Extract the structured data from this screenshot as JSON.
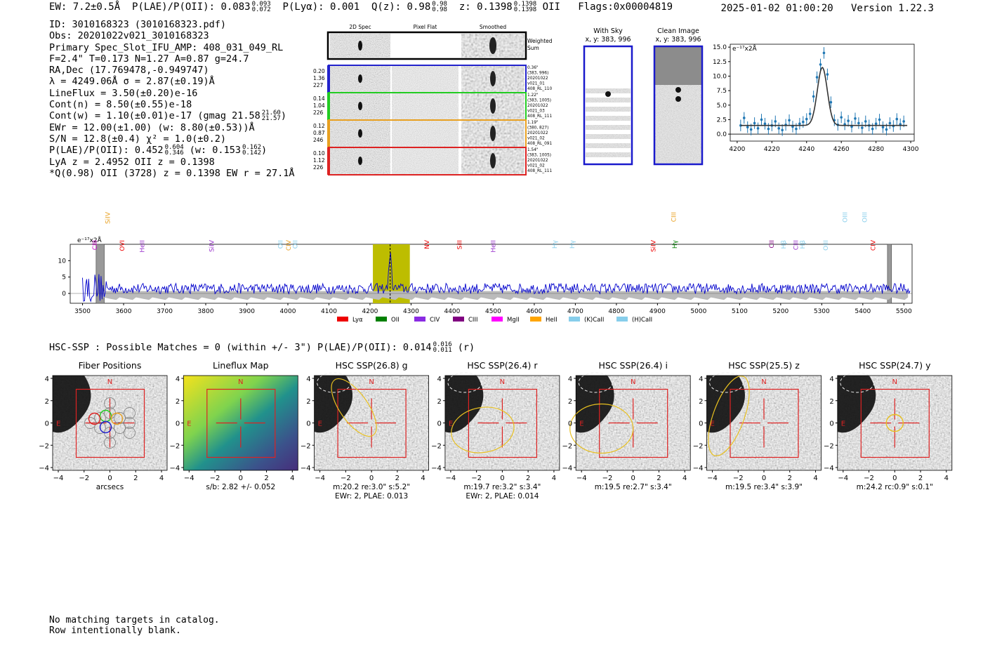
{
  "header": {
    "ew": "EW: 7.2±0.5Å",
    "plae_label": "P(LAE)/P(OII): 0.083",
    "plae_hi": "0.093",
    "plae_lo": "0.072",
    "plya": "P(Lyα): 0.001",
    "q_label": "Q(z): 0.98",
    "q_hi": "0.98",
    "q_lo": "0.98",
    "z_label": "z: 0.1398",
    "z_hi": "0.1398",
    "z_lo": "0.1398",
    "z_line": "OII",
    "flags": "Flags:0x00004819",
    "datetime": "2025-01-02 01:00:20",
    "version": "Version 1.22.3"
  },
  "info": {
    "id": "ID: 3010168323 (3010168323.pdf)",
    "obs": "Obs: 20201022v021_3010168323",
    "primary": "Primary Spec_Slot_IFU_AMP: 408_031_049_RL",
    "params": "F=2.4\"  T=0.173  N=1.27  A=0.87  g=24.7",
    "radec": "RA,Dec (17.769478,-0.949747)",
    "lambda": "λ = 4249.06Å  σ = 2.87(±0.19)Å",
    "lineflux": "LineFlux = 3.50(±0.20)e-16",
    "contn": "Cont(n) = 8.50(±0.55)e-18",
    "contw": "Cont(w) = 1.10(±0.01)e-17 (gmag 21.58",
    "contw_hi": "21.60",
    "contw_lo": "21.57",
    "contw_end": ")",
    "ewr": "EWr = 12.00(±1.00) (w: 8.80(±0.53))Å",
    "sn": "S/N = 12.8(±0.4)  χ² = 1.0(±0.2)",
    "plae2": "P(LAE)/P(OII): 0.452",
    "plae2_hi": "0.604",
    "plae2_lo": "0.346",
    "plae2_w": "(w: 0.153",
    "plae2_w_hi": "0.162",
    "plae2_w_lo": "0.142",
    "plae2_end": ")",
    "lya": "LyA z = 2.4952  OII z = 0.1398",
    "q": "*Q(0.98) OII (3728) z = 0.1398  EW r = 27.1Å"
  },
  "cutouts": {
    "col_labels": [
      "2D Spec",
      "Pixel Flat",
      "Smoothed"
    ],
    "weighted_label": "Weighted Sum",
    "rows": [
      {
        "left": [
          "0.20",
          "1.36",
          "227"
        ],
        "right": [
          "0.36\"",
          "(383, 996)",
          "20201022",
          "v021_01",
          "408_RL_110"
        ],
        "color": "#2222cc"
      },
      {
        "left": [
          "0.14",
          "1.04",
          "226"
        ],
        "right": [
          "1.22\"",
          "(383, 1005)",
          "20201022",
          "v021_03",
          "408_RL_111"
        ],
        "color": "#22cc22"
      },
      {
        "left": [
          "0.12",
          "0.87",
          "246"
        ],
        "right": [
          "1.19\"",
          "(380, 827)",
          "20201022",
          "v021_02",
          "408_RL_091"
        ],
        "color": "#e8a020"
      },
      {
        "left": [
          "0.10",
          "1.12",
          "226"
        ],
        "right": [
          "1.54\"",
          "(383, 1005)",
          "20201022",
          "v021_02",
          "408_RL_111"
        ],
        "color": "#dd2222"
      }
    ]
  },
  "sky_panels": [
    {
      "title": "With Sky",
      "coords": "x, y: 383, 996"
    },
    {
      "title": "Clean Image",
      "coords": "x, y: 383, 996"
    }
  ],
  "chart_data": [
    {
      "type": "scatter",
      "name": "line fit",
      "unit_label": "e⁻¹⁷x2Å",
      "xlim": [
        4196,
        4302
      ],
      "ylim": [
        -1.2,
        15.5
      ],
      "xticks": [
        4200,
        4220,
        4240,
        4260,
        4280,
        4300
      ],
      "yticks": [
        0.0,
        2.5,
        5.0,
        7.5,
        10.0,
        12.5,
        15.0
      ],
      "points": {
        "x": [
          4202,
          4204,
          4206,
          4208,
          4210,
          4212,
          4214,
          4216,
          4218,
          4220,
          4222,
          4224,
          4226,
          4228,
          4230,
          4232,
          4234,
          4236,
          4238,
          4240,
          4242,
          4244,
          4246,
          4248,
          4250,
          4252,
          4254,
          4256,
          4258,
          4260,
          4262,
          4264,
          4266,
          4268,
          4270,
          4272,
          4274,
          4276,
          4278,
          4280,
          4282,
          4284,
          4286,
          4288,
          4290,
          4292,
          4294,
          4296
        ],
        "y": [
          1.5,
          2.8,
          1.2,
          0.8,
          1.9,
          1.0,
          2.5,
          1.8,
          0.9,
          1.5,
          2.2,
          1.0,
          0.7,
          1.6,
          2.4,
          1.3,
          0.9,
          1.8,
          2.1,
          2.6,
          3.5,
          6.5,
          9.8,
          12.0,
          14.0,
          10.3,
          5.5,
          2.4,
          1.6,
          2.9,
          1.7,
          2.3,
          1.3,
          2.7,
          1.9,
          1.1,
          2.2,
          1.5,
          0.9,
          1.8,
          2.5,
          1.2,
          0.8,
          1.9,
          1.4,
          2.6,
          1.7,
          2.2
        ],
        "err": 1.0
      },
      "fit": {
        "center": 4249.06,
        "sigma": 2.87,
        "amplitude": 10.0,
        "continuum": 1.5
      }
    },
    {
      "type": "line",
      "name": "full spectrum",
      "unit_label": "e⁻¹⁷x2Å",
      "xlim": [
        3470,
        5520
      ],
      "ylim": [
        -3,
        15
      ],
      "xticks": [
        3500,
        3600,
        3700,
        3800,
        3900,
        4000,
        4100,
        4200,
        4300,
        4400,
        4500,
        4600,
        4700,
        4800,
        4900,
        5000,
        5100,
        5200,
        5300,
        5400,
        5500
      ],
      "yticks": [
        0,
        5,
        10
      ],
      "highlight_range": [
        4207,
        4297
      ],
      "line_at": 4249.06,
      "masked_ranges": [
        [
          3533,
          3553
        ],
        [
          5460,
          5470
        ]
      ],
      "series_color": "#0000cc",
      "legend": [
        {
          "label": "Lyα",
          "color": "#ee0000"
        },
        {
          "label": "OII",
          "color": "#008000"
        },
        {
          "label": "CIV",
          "color": "#8a2be2"
        },
        {
          "label": "CIII",
          "color": "#800080"
        },
        {
          "label": "MgII",
          "color": "#ff00ff"
        },
        {
          "label": "HeII",
          "color": "#ffa500"
        },
        {
          "label": "(K)CaII",
          "color": "#87ceeb"
        },
        {
          "label": "(H)CaII",
          "color": "#87ceeb"
        }
      ],
      "line_labels": [
        {
          "label": "CIII",
          "x": 3535,
          "color": "#cc00cc"
        },
        {
          "label": "SiIV",
          "x": 3567,
          "color": "#e8a020",
          "row": "high"
        },
        {
          "label": "OVI",
          "x": 3602,
          "color": "#ee0000"
        },
        {
          "label": "HeII",
          "x": 3650,
          "color": "#9933cc"
        },
        {
          "label": "SiIV",
          "x": 3820,
          "color": "#9933cc"
        },
        {
          "label": "OII",
          "x": 3987,
          "color": "#87ceeb"
        },
        {
          "label": "CIV",
          "x": 4007,
          "color": "#e8a020"
        },
        {
          "label": "OII",
          "x": 4023,
          "color": "#87ceeb"
        },
        {
          "label": "NV",
          "x": 4344,
          "color": "#ee0000"
        },
        {
          "label": "SiII",
          "x": 4423,
          "color": "#ee0000"
        },
        {
          "label": "HeII",
          "x": 4505,
          "color": "#9933cc"
        },
        {
          "label": "Hγ",
          "x": 4655,
          "color": "#87ceeb"
        },
        {
          "label": "Hγ",
          "x": 4698,
          "color": "#87ceeb"
        },
        {
          "label": "SiIV",
          "x": 4895,
          "color": "#ee0000"
        },
        {
          "label": "CIII",
          "x": 4945,
          "color": "#e8a020",
          "row": "high"
        },
        {
          "label": "Hγ",
          "x": 4947,
          "color": "#008000"
        },
        {
          "label": "CII",
          "x": 5183,
          "color": "#800080"
        },
        {
          "label": "Hβ",
          "x": 5212,
          "color": "#87ceeb"
        },
        {
          "label": "CIII",
          "x": 5242,
          "color": "#9933cc"
        },
        {
          "label": "Hβ",
          "x": 5258,
          "color": "#87ceeb"
        },
        {
          "label": "OIII",
          "x": 5315,
          "color": "#87ceeb"
        },
        {
          "label": "OIII",
          "x": 5362,
          "color": "#87ceeb",
          "row": "high"
        },
        {
          "label": "OIII",
          "x": 5410,
          "color": "#87ceeb",
          "row": "high"
        },
        {
          "label": "CIV",
          "x": 5430,
          "color": "#ee0000"
        }
      ]
    }
  ],
  "hsc": {
    "title": "HSC-SSP : Possible Matches = 0 (within +/- 3\")  P(LAE)/P(OII): 0.014",
    "title_hi": "0.016",
    "title_lo": "0.011",
    "title_end": "(r)",
    "axis_ticks": [
      "−4",
      "−2",
      "0",
      "2",
      "4"
    ],
    "panels": [
      {
        "title": "Fiber Positions",
        "caption": [
          "arcsecs"
        ],
        "kind": "fiber"
      },
      {
        "title": "Lineflux Map",
        "caption": [
          "s/b: 2.82 +/- 0.052"
        ],
        "kind": "flux"
      },
      {
        "title": "HSC SSP(26.8) g",
        "caption": [
          "m:20.2  re:3.0\"  s:5.2\"",
          "EWr: 2, PLAE: 0.013"
        ],
        "kind": "img"
      },
      {
        "title": "HSC SSP(26.4) r",
        "caption": [
          "m:19.7  re:3.2\"  s:3.4\"",
          "EWr: 2, PLAE: 0.014"
        ],
        "kind": "img"
      },
      {
        "title": "HSC SSP(26.4) i",
        "caption": [
          "m:19.5  re:2.7\"  s:3.4\""
        ],
        "kind": "img"
      },
      {
        "title": "HSC SSP(25.5) z",
        "caption": [
          "m:19.5  re:3.4\"  s:3.9\""
        ],
        "kind": "img"
      },
      {
        "title": "HSC SSP(24.7) y",
        "caption": [
          "m:24.2  rc:0.9\"  s:0.1\""
        ],
        "kind": "img"
      }
    ],
    "n_label": "N",
    "e_label": "E"
  },
  "footer": {
    "line1": "No matching targets in catalog.",
    "line2": "Row intentionally blank."
  }
}
